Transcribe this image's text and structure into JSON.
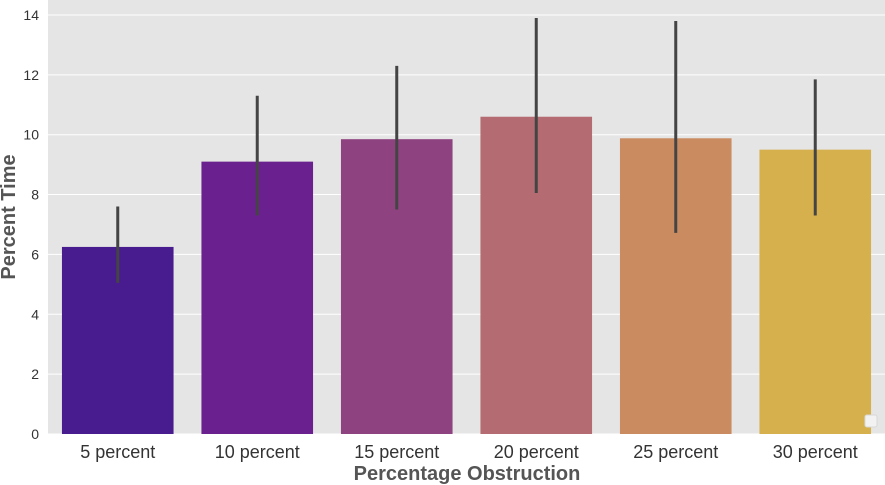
{
  "chart_data": {
    "type": "bar",
    "title": "",
    "xlabel": "Percentage Obstruction",
    "ylabel": "Percent Time",
    "ylim": [
      0,
      14.5
    ],
    "yticks": [
      0,
      2,
      4,
      6,
      8,
      10,
      12,
      14
    ],
    "grid": true,
    "legend": "bottom-right (empty)",
    "categories": [
      "5 percent",
      "10 percent",
      "15 percent",
      "20 percent",
      "25 percent",
      "30 percent"
    ],
    "values": [
      6.25,
      9.1,
      9.85,
      10.6,
      9.88,
      9.5
    ],
    "error_low": [
      5.05,
      7.3,
      7.5,
      8.05,
      6.72,
      7.3
    ],
    "error_high": [
      7.6,
      11.3,
      12.3,
      13.9,
      13.8,
      11.85
    ],
    "colors": [
      "#481b8e",
      "#6a208e",
      "#8f4280",
      "#b46b71",
      "#cb8b61",
      "#d6b04c"
    ],
    "background": "#e5e5e5",
    "grid_color": "#ffffff",
    "errorbar_color": "#444444"
  }
}
